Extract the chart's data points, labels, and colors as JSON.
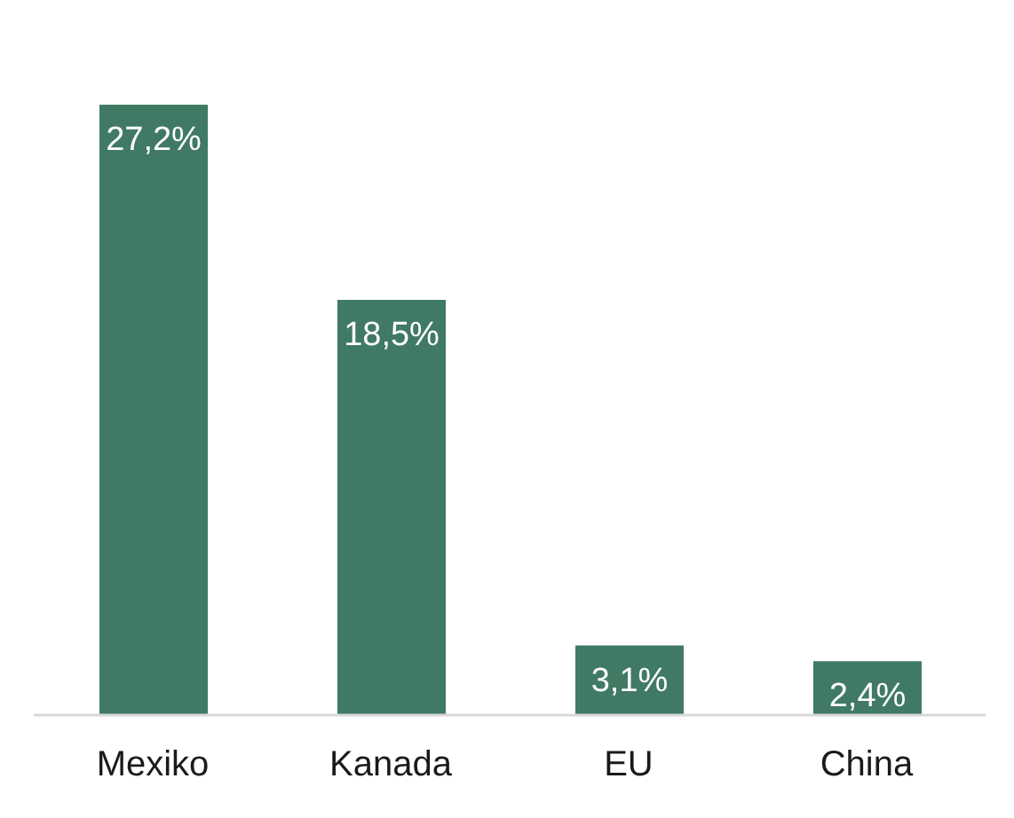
{
  "chart_data": {
    "type": "bar",
    "categories": [
      "Mexiko",
      "Kanada",
      "EU",
      "China"
    ],
    "values": [
      27.2,
      18.5,
      3.1,
      2.4
    ],
    "value_labels": [
      "27,2%",
      "18,5%",
      "3,1%",
      "2,4%"
    ],
    "color": "#417a64",
    "tick_labels": "x"
  }
}
